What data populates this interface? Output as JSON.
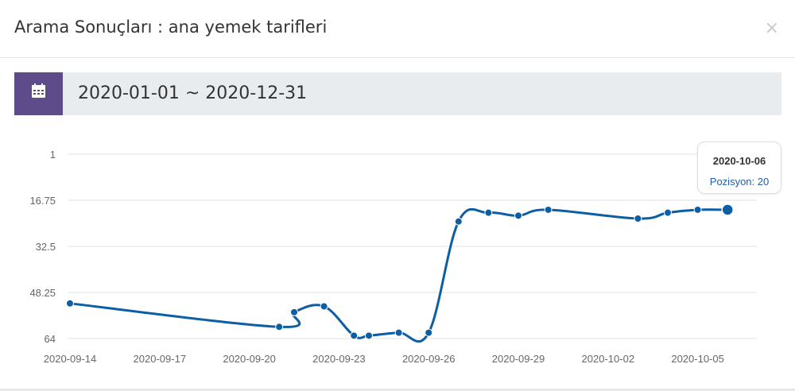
{
  "modal": {
    "title": "Arama Sonuçları : ana yemek tarifleri",
    "close_symbol": "×"
  },
  "date_range": {
    "icon": "calendar-icon",
    "value": "2020-01-01 ~ 2020-12-31"
  },
  "colors": {
    "accent": "#5d4b8a",
    "line": "#0d5ea3",
    "grid": "#e3e3e3"
  },
  "tooltip": {
    "date": "2020-10-06",
    "label": "Pozisyon: 20"
  },
  "chart_data": {
    "type": "line",
    "y_inverted": true,
    "ylim": [
      1,
      64
    ],
    "yticks": [
      "1",
      "16.75",
      "32.5",
      "48.25",
      "64"
    ],
    "xticks": [
      "2020-09-14",
      "2020-09-17",
      "2020-09-20",
      "2020-09-23",
      "2020-09-26",
      "2020-09-29",
      "2020-10-02",
      "2020-10-05"
    ],
    "grid": true,
    "series": [
      {
        "values": [
          {
            "x": "2020-09-14",
            "y": 52
          },
          {
            "x": "2020-09-21",
            "y": 60
          },
          {
            "x": "2020-09-21.5",
            "y": 55
          },
          {
            "x": "2020-09-22.5",
            "y": 53
          },
          {
            "x": "2020-09-23.5",
            "y": 63
          },
          {
            "x": "2020-09-24",
            "y": 63
          },
          {
            "x": "2020-09-25",
            "y": 62
          },
          {
            "x": "2020-09-26",
            "y": 62
          },
          {
            "x": "2020-09-27",
            "y": 24
          },
          {
            "x": "2020-09-28",
            "y": 21
          },
          {
            "x": "2020-09-29",
            "y": 22
          },
          {
            "x": "2020-09-30",
            "y": 20
          },
          {
            "x": "2020-10-03",
            "y": 23
          },
          {
            "x": "2020-10-04",
            "y": 21
          },
          {
            "x": "2020-10-05",
            "y": 20
          },
          {
            "x": "2020-10-06",
            "y": 20
          }
        ]
      }
    ]
  }
}
